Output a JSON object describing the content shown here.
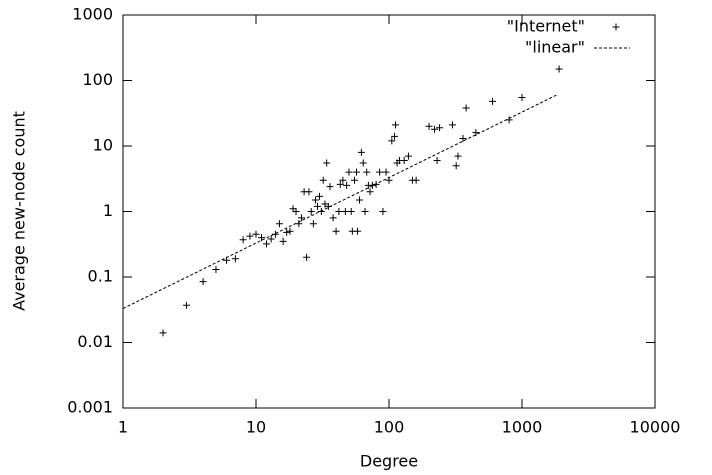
{
  "chart_data": {
    "type": "scatter",
    "xlabel": "Degree",
    "ylabel": "Average new-node count",
    "xscale": "log",
    "yscale": "log",
    "xlim": [
      1,
      10000
    ],
    "ylim": [
      0.001,
      1000
    ],
    "xticks": [
      1,
      10,
      100,
      1000,
      10000
    ],
    "yticks": [
      0.001,
      0.01,
      0.1,
      1,
      10,
      100,
      1000
    ],
    "legend": "top-right",
    "series": [
      {
        "name": "\"Internet\"",
        "style": "points",
        "color": "#000000",
        "x": [
          2,
          3,
          4,
          5,
          6,
          7,
          8,
          9,
          10,
          11,
          12,
          13,
          14,
          15,
          16,
          17,
          18,
          19,
          20,
          21,
          22,
          23,
          24,
          25,
          26,
          27,
          28,
          29,
          30,
          31,
          32,
          33,
          34,
          35,
          36,
          38,
          40,
          42,
          43,
          45,
          47,
          48,
          50,
          52,
          53,
          55,
          57,
          58,
          60,
          62,
          64,
          66,
          68,
          70,
          72,
          75,
          80,
          85,
          90,
          95,
          100,
          105,
          110,
          112,
          115,
          120,
          130,
          140,
          150,
          160,
          200,
          220,
          230,
          240,
          300,
          320,
          330,
          360,
          380,
          450,
          600,
          800,
          1000,
          1900
        ],
        "values": [
          0.014,
          0.037,
          0.085,
          0.13,
          0.18,
          0.19,
          0.37,
          0.42,
          0.45,
          0.4,
          0.32,
          0.38,
          0.45,
          0.65,
          0.35,
          0.48,
          0.5,
          1.1,
          1.0,
          0.65,
          0.8,
          2.0,
          0.2,
          2.0,
          1.0,
          0.65,
          1.5,
          1.2,
          1.7,
          1.0,
          3.0,
          1.3,
          5.5,
          1.2,
          2.4,
          0.8,
          0.5,
          1.0,
          2.6,
          3.0,
          1.0,
          2.5,
          4.0,
          1.0,
          0.5,
          3.0,
          4.0,
          0.5,
          1.5,
          8.0,
          5.5,
          1.0,
          4.0,
          2.5,
          2.0,
          2.5,
          2.6,
          4.0,
          1.0,
          4.0,
          3.0,
          12,
          14,
          21,
          5.5,
          6.0,
          6.0,
          7.0,
          3.0,
          3.0,
          20,
          18,
          6.0,
          19,
          21,
          5.0,
          7.0,
          13,
          38,
          16,
          48,
          25,
          55,
          150
        ]
      },
      {
        "name": "\"linear\"",
        "style": "dashed-line",
        "color": "#000000",
        "x": [
          1,
          1850
        ],
        "values": [
          0.033,
          61
        ]
      }
    ]
  }
}
